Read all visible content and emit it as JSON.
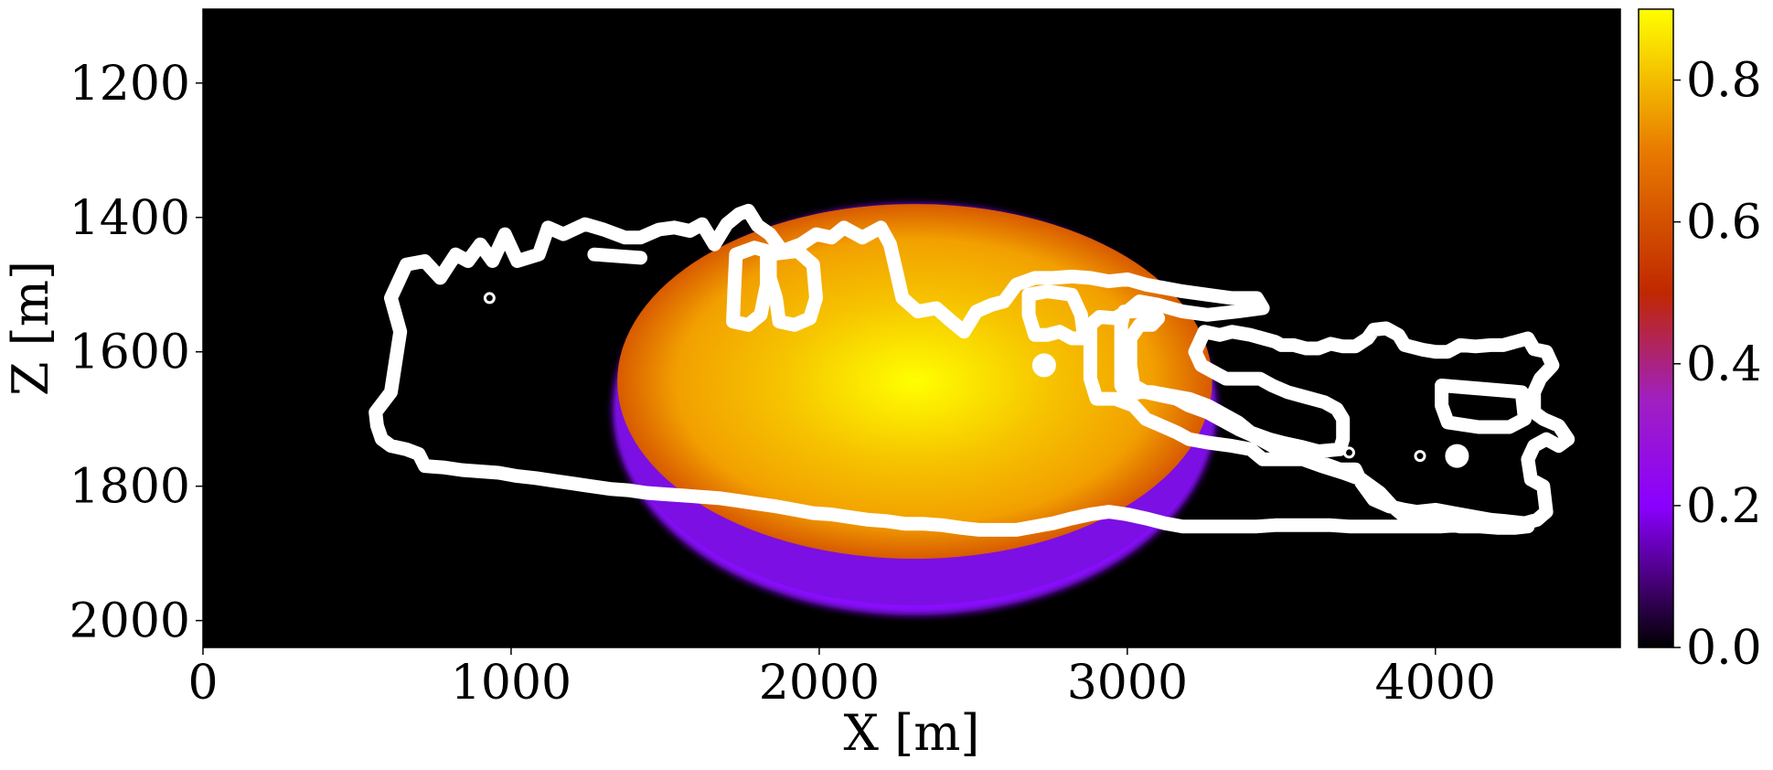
{
  "chart_data": {
    "type": "heatmap",
    "title": "",
    "xlabel": "X [m]",
    "ylabel": "Z [m]",
    "xlim": [
      0,
      4600
    ],
    "ylim": [
      2040,
      1090
    ],
    "y_axis_inverted": true,
    "x_ticks": [
      0,
      1000,
      2000,
      3000,
      4000
    ],
    "x_tick_labels": [
      "0",
      "1000",
      "2000",
      "3000",
      "4000"
    ],
    "y_ticks": [
      1200,
      1400,
      1600,
      1800,
      2000
    ],
    "y_tick_labels": [
      "1200",
      "1400",
      "1600",
      "1800",
      "2000"
    ],
    "grid": false,
    "background_value": 0.0,
    "colorbar": {
      "colormap": "gnuplot",
      "range": [
        0.0,
        0.9
      ],
      "ticks": [
        0.0,
        0.2,
        0.4,
        0.6,
        0.8
      ],
      "tick_labels": [
        "0.0",
        "0.2",
        "0.4",
        "0.6",
        "0.8"
      ],
      "stops": [
        {
          "value": 0.0,
          "color": "#000000"
        },
        {
          "value": 0.1,
          "color": "#4b0080"
        },
        {
          "value": 0.2,
          "color": "#8a00ff"
        },
        {
          "value": 0.35,
          "color": "#a020c0"
        },
        {
          "value": 0.5,
          "color": "#c02800"
        },
        {
          "value": 0.7,
          "color": "#e87a00"
        },
        {
          "value": 0.9,
          "color": "#ffff00"
        }
      ]
    },
    "field": {
      "shape": "ellipse",
      "center_x": 2310,
      "center_z": 1650,
      "semi_x": 980,
      "semi_z": 300,
      "peak_value": 0.9,
      "edge_value": 0.6,
      "halo_value": 0.25,
      "colors": {
        "peak": "#ffff00",
        "mid": "#f2a000",
        "edge": "#d85a00",
        "halo": "#8a10ff"
      }
    },
    "contour": {
      "color": "#ffffff",
      "main_outline": [
        [
          560,
          1690
        ],
        [
          610,
          1660
        ],
        [
          640,
          1570
        ],
        [
          610,
          1520
        ],
        [
          660,
          1470
        ],
        [
          720,
          1465
        ],
        [
          770,
          1490
        ],
        [
          820,
          1455
        ],
        [
          860,
          1465
        ],
        [
          900,
          1440
        ],
        [
          940,
          1465
        ],
        [
          980,
          1425
        ],
        [
          1020,
          1465
        ],
        [
          1090,
          1455
        ],
        [
          1120,
          1415
        ],
        [
          1170,
          1425
        ],
        [
          1240,
          1410
        ],
        [
          1300,
          1418
        ],
        [
          1370,
          1430
        ],
        [
          1420,
          1430
        ],
        [
          1480,
          1418
        ],
        [
          1530,
          1415
        ],
        [
          1580,
          1420
        ],
        [
          1620,
          1410
        ],
        [
          1660,
          1440
        ],
        [
          1700,
          1410
        ],
        [
          1740,
          1395
        ],
        [
          1770,
          1390
        ],
        [
          1800,
          1412
        ],
        [
          1840,
          1425
        ],
        [
          1880,
          1450
        ],
        [
          1940,
          1440
        ],
        [
          1990,
          1425
        ],
        [
          2040,
          1430
        ],
        [
          2080,
          1415
        ],
        [
          2140,
          1430
        ],
        [
          2200,
          1415
        ],
        [
          2230,
          1440
        ],
        [
          2250,
          1480
        ],
        [
          2270,
          1520
        ],
        [
          2320,
          1540
        ],
        [
          2380,
          1535
        ],
        [
          2430,
          1555
        ],
        [
          2470,
          1570
        ],
        [
          2510,
          1540
        ],
        [
          2560,
          1530
        ],
        [
          2600,
          1525
        ],
        [
          2640,
          1500
        ],
        [
          2700,
          1490
        ],
        [
          2760,
          1490
        ],
        [
          2820,
          1488
        ],
        [
          2880,
          1490
        ],
        [
          2940,
          1495
        ],
        [
          3000,
          1492
        ],
        [
          3060,
          1500
        ],
        [
          3120,
          1505
        ],
        [
          3180,
          1510
        ],
        [
          3260,
          1515
        ],
        [
          3340,
          1520
        ],
        [
          3420,
          1520
        ],
        [
          3440,
          1535
        ],
        [
          3360,
          1540
        ],
        [
          3260,
          1545
        ],
        [
          3180,
          1540
        ],
        [
          3100,
          1530
        ],
        [
          3040,
          1525
        ],
        [
          3000,
          1540
        ],
        [
          2960,
          1550
        ],
        [
          2910,
          1548
        ],
        [
          2880,
          1560
        ],
        [
          2880,
          1600
        ],
        [
          2880,
          1640
        ],
        [
          2900,
          1670
        ],
        [
          2960,
          1670
        ],
        [
          3020,
          1680
        ],
        [
          3060,
          1700
        ],
        [
          3110,
          1710
        ],
        [
          3160,
          1720
        ],
        [
          3200,
          1730
        ],
        [
          3260,
          1735
        ],
        [
          3340,
          1740
        ],
        [
          3400,
          1745
        ],
        [
          3440,
          1760
        ],
        [
          3480,
          1760
        ],
        [
          3520,
          1760
        ],
        [
          3570,
          1760
        ],
        [
          3630,
          1765
        ],
        [
          3690,
          1775
        ],
        [
          3740,
          1775
        ],
        [
          3760,
          1795
        ],
        [
          3800,
          1820
        ],
        [
          3850,
          1830
        ],
        [
          3900,
          1835
        ],
        [
          3940,
          1838
        ],
        [
          4000,
          1835
        ],
        [
          4060,
          1840
        ],
        [
          4120,
          1845
        ],
        [
          4180,
          1850
        ],
        [
          4230,
          1852
        ],
        [
          4290,
          1855
        ],
        [
          4330,
          1850
        ],
        [
          4360,
          1838
        ],
        [
          4350,
          1800
        ],
        [
          4310,
          1790
        ],
        [
          4300,
          1760
        ],
        [
          4320,
          1740
        ],
        [
          4360,
          1730
        ],
        [
          4400,
          1740
        ],
        [
          4430,
          1730
        ],
        [
          4400,
          1710
        ],
        [
          4350,
          1700
        ],
        [
          4320,
          1690
        ],
        [
          4320,
          1660
        ],
        [
          4340,
          1640
        ],
        [
          4380,
          1620
        ],
        [
          4360,
          1600
        ],
        [
          4320,
          1596
        ],
        [
          4300,
          1580
        ],
        [
          4260,
          1585
        ],
        [
          4220,
          1590
        ],
        [
          4180,
          1590
        ],
        [
          4130,
          1592
        ],
        [
          4080,
          1590
        ],
        [
          4040,
          1600
        ],
        [
          4000,
          1600
        ],
        [
          3960,
          1597
        ],
        [
          3900,
          1590
        ],
        [
          3880,
          1575
        ],
        [
          3840,
          1565
        ],
        [
          3800,
          1567
        ],
        [
          3780,
          1580
        ],
        [
          3740,
          1592
        ],
        [
          3700,
          1592
        ],
        [
          3660,
          1588
        ],
        [
          3620,
          1595
        ],
        [
          3580,
          1595
        ],
        [
          3540,
          1590
        ],
        [
          3500,
          1590
        ],
        [
          3480,
          1585
        ],
        [
          3440,
          1580
        ],
        [
          3400,
          1575
        ],
        [
          3340,
          1570
        ],
        [
          3300,
          1575
        ],
        [
          3250,
          1570
        ],
        [
          3220,
          1600
        ],
        [
          3240,
          1620
        ],
        [
          3280,
          1630
        ],
        [
          3320,
          1640
        ],
        [
          3380,
          1640
        ],
        [
          3430,
          1640
        ],
        [
          3470,
          1650
        ],
        [
          3520,
          1660
        ],
        [
          3560,
          1665
        ],
        [
          3600,
          1670
        ],
        [
          3640,
          1675
        ],
        [
          3680,
          1685
        ],
        [
          3700,
          1700
        ],
        [
          3700,
          1730
        ],
        [
          3690,
          1745
        ],
        [
          3620,
          1748
        ],
        [
          3570,
          1742
        ],
        [
          3510,
          1736
        ],
        [
          3460,
          1730
        ],
        [
          3400,
          1720
        ],
        [
          3360,
          1705
        ],
        [
          3300,
          1690
        ],
        [
          3260,
          1680
        ],
        [
          3200,
          1670
        ],
        [
          3140,
          1665
        ],
        [
          3080,
          1660
        ],
        [
          3040,
          1660
        ],
        [
          3000,
          1665
        ],
        [
          2980,
          1650
        ],
        [
          2980,
          1600
        ],
        [
          2980,
          1560
        ],
        [
          2990,
          1540
        ],
        [
          3030,
          1540
        ],
        [
          3070,
          1540
        ],
        [
          3100,
          1550
        ],
        [
          3080,
          1560
        ],
        [
          3040,
          1560
        ],
        [
          3010,
          1580
        ],
        [
          3010,
          1620
        ],
        [
          3020,
          1650
        ],
        [
          3060,
          1660
        ],
        [
          3110,
          1665
        ],
        [
          3160,
          1670
        ],
        [
          3200,
          1680
        ],
        [
          3260,
          1690
        ],
        [
          3300,
          1700
        ],
        [
          3360,
          1715
        ],
        [
          3410,
          1725
        ],
        [
          3470,
          1740
        ],
        [
          3520,
          1750
        ],
        [
          3570,
          1760
        ],
        [
          3630,
          1770
        ],
        [
          3700,
          1780
        ],
        [
          3760,
          1790
        ],
        [
          3820,
          1810
        ],
        [
          3860,
          1830
        ],
        [
          3900,
          1845
        ],
        [
          3960,
          1850
        ],
        [
          4020,
          1855
        ],
        [
          4080,
          1860
        ],
        [
          4140,
          1860
        ],
        [
          4200,
          1862
        ],
        [
          4260,
          1862
        ],
        [
          4300,
          1860
        ],
        [
          4250,
          1858
        ],
        [
          4200,
          1856
        ],
        [
          4140,
          1858
        ],
        [
          4080,
          1858
        ],
        [
          4020,
          1860
        ],
        [
          3960,
          1860
        ],
        [
          3900,
          1860
        ],
        [
          3840,
          1860
        ],
        [
          3780,
          1860
        ],
        [
          3720,
          1860
        ],
        [
          3660,
          1858
        ],
        [
          3600,
          1858
        ],
        [
          3540,
          1858
        ],
        [
          3480,
          1858
        ],
        [
          3420,
          1860
        ],
        [
          3360,
          1860
        ],
        [
          3300,
          1860
        ],
        [
          3240,
          1860
        ],
        [
          3180,
          1860
        ],
        [
          3120,
          1855
        ],
        [
          3060,
          1848
        ],
        [
          3000,
          1842
        ],
        [
          2940,
          1838
        ],
        [
          2880,
          1842
        ],
        [
          2820,
          1848
        ],
        [
          2760,
          1855
        ],
        [
          2700,
          1860
        ],
        [
          2640,
          1865
        ],
        [
          2580,
          1865
        ],
        [
          2520,
          1865
        ],
        [
          2460,
          1862
        ],
        [
          2400,
          1858
        ],
        [
          2340,
          1856
        ],
        [
          2280,
          1856
        ],
        [
          2220,
          1852
        ],
        [
          2160,
          1850
        ],
        [
          2100,
          1846
        ],
        [
          2040,
          1842
        ],
        [
          1980,
          1840
        ],
        [
          1920,
          1835
        ],
        [
          1860,
          1830
        ],
        [
          1800,
          1826
        ],
        [
          1740,
          1822
        ],
        [
          1680,
          1818
        ],
        [
          1620,
          1816
        ],
        [
          1560,
          1814
        ],
        [
          1500,
          1812
        ],
        [
          1440,
          1810
        ],
        [
          1380,
          1806
        ],
        [
          1320,
          1804
        ],
        [
          1260,
          1800
        ],
        [
          1200,
          1796
        ],
        [
          1140,
          1792
        ],
        [
          1080,
          1788
        ],
        [
          1020,
          1785
        ],
        [
          960,
          1780
        ],
        [
          900,
          1778
        ],
        [
          840,
          1776
        ],
        [
          780,
          1772
        ],
        [
          720,
          1770
        ],
        [
          700,
          1752
        ],
        [
          660,
          1745
        ],
        [
          610,
          1740
        ],
        [
          580,
          1730
        ],
        [
          565,
          1710
        ],
        [
          560,
          1690
        ]
      ],
      "inner_loops": [
        [
          [
            1730,
            1455
          ],
          [
            1790,
            1445
          ],
          [
            1830,
            1450
          ],
          [
            1830,
            1500
          ],
          [
            1810,
            1545
          ],
          [
            1770,
            1560
          ],
          [
            1720,
            1555
          ],
          [
            1725,
            1500
          ],
          [
            1730,
            1455
          ]
        ],
        [
          [
            1840,
            1455
          ],
          [
            1930,
            1450
          ],
          [
            1980,
            1470
          ],
          [
            1990,
            1520
          ],
          [
            1970,
            1550
          ],
          [
            1920,
            1560
          ],
          [
            1870,
            1555
          ],
          [
            1860,
            1520
          ],
          [
            1840,
            1490
          ],
          [
            1840,
            1455
          ]
        ],
        [
          [
            2680,
            1515
          ],
          [
            2740,
            1510
          ],
          [
            2820,
            1515
          ],
          [
            2850,
            1545
          ],
          [
            2860,
            1580
          ],
          [
            2820,
            1580
          ],
          [
            2780,
            1570
          ],
          [
            2740,
            1575
          ],
          [
            2700,
            1575
          ],
          [
            2680,
            1545
          ],
          [
            2680,
            1515
          ]
        ],
        [
          [
            4020,
            1650
          ],
          [
            4150,
            1655
          ],
          [
            4280,
            1660
          ],
          [
            4290,
            1700
          ],
          [
            4240,
            1712
          ],
          [
            4140,
            1712
          ],
          [
            4040,
            1705
          ],
          [
            4020,
            1680
          ],
          [
            4020,
            1650
          ]
        ]
      ],
      "blobs": [
        {
          "x": 2730,
          "z": 1620
        },
        {
          "x": 4070,
          "z": 1755
        },
        {
          "x": 930,
          "z": 1520
        },
        {
          "x": 3720,
          "z": 1750
        },
        {
          "x": 3950,
          "z": 1755
        }
      ],
      "segments": [
        [
          [
            1270,
            1455
          ],
          [
            1420,
            1460
          ]
        ]
      ]
    }
  }
}
